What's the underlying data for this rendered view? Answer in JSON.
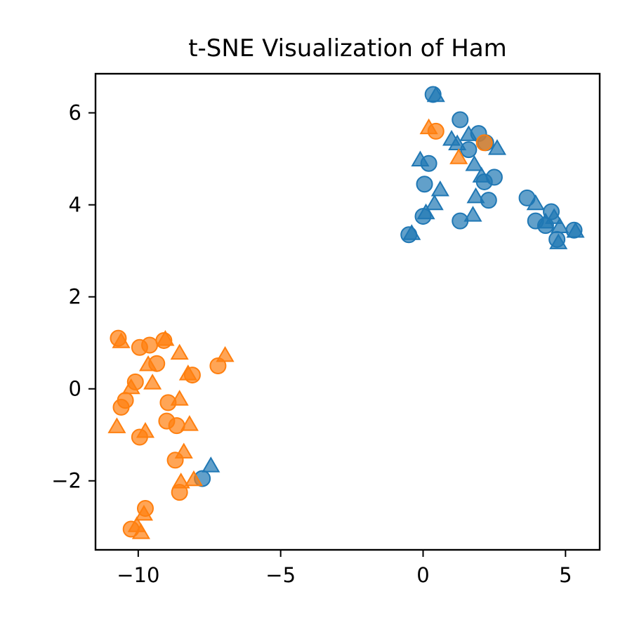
{
  "chart_data": {
    "type": "scatter",
    "title": "t-SNE Visualization of Ham",
    "xlabel": "",
    "ylabel": "",
    "xlim": [
      -11.5,
      6.2
    ],
    "ylim": [
      -3.5,
      6.85
    ],
    "xticks": [
      -10,
      -5,
      0,
      5
    ],
    "yticks": [
      -2,
      0,
      2,
      4,
      6
    ],
    "xtick_labels": [
      "−10",
      "−5",
      "0",
      "5"
    ],
    "ytick_labels": [
      "−2",
      "0",
      "2",
      "4",
      "6"
    ],
    "grid": false,
    "legend": false,
    "series": [
      {
        "color": "#1f77b4",
        "marker": "circle",
        "points": [
          [
            0.35,
            6.4
          ],
          [
            1.3,
            5.85
          ],
          [
            1.95,
            5.55
          ],
          [
            2.2,
            5.35
          ],
          [
            1.6,
            5.2
          ],
          [
            0.2,
            4.9
          ],
          [
            2.5,
            4.6
          ],
          [
            0.05,
            4.45
          ],
          [
            2.15,
            4.5
          ],
          [
            2.3,
            4.1
          ],
          [
            0.0,
            3.75
          ],
          [
            -0.5,
            3.35
          ],
          [
            1.3,
            3.65
          ],
          [
            3.65,
            4.15
          ],
          [
            4.5,
            3.85
          ],
          [
            3.95,
            3.65
          ],
          [
            4.3,
            3.55
          ],
          [
            4.7,
            3.25
          ],
          [
            5.3,
            3.45
          ],
          [
            -7.75,
            -1.95
          ]
        ]
      },
      {
        "color": "#1f77b4",
        "marker": "triangle",
        "points": [
          [
            0.45,
            6.35
          ],
          [
            1.0,
            5.4
          ],
          [
            1.6,
            5.5
          ],
          [
            1.2,
            5.3
          ],
          [
            2.6,
            5.2
          ],
          [
            1.8,
            4.85
          ],
          [
            -0.1,
            4.95
          ],
          [
            0.6,
            4.3
          ],
          [
            2.05,
            4.6
          ],
          [
            1.85,
            4.15
          ],
          [
            0.4,
            4.0
          ],
          [
            0.1,
            3.8
          ],
          [
            -0.4,
            3.35
          ],
          [
            1.75,
            3.75
          ],
          [
            3.95,
            4.0
          ],
          [
            4.3,
            3.6
          ],
          [
            4.6,
            3.7
          ],
          [
            4.8,
            3.5
          ],
          [
            4.75,
            3.15
          ],
          [
            5.35,
            3.4
          ],
          [
            -7.45,
            -1.7
          ]
        ]
      },
      {
        "color": "#ff7f0e",
        "marker": "circle",
        "points": [
          [
            0.45,
            5.6
          ],
          [
            2.15,
            5.35
          ],
          [
            -10.7,
            1.1
          ],
          [
            -9.95,
            0.9
          ],
          [
            -9.6,
            0.95
          ],
          [
            -9.1,
            1.05
          ],
          [
            -9.35,
            0.55
          ],
          [
            -7.2,
            0.5
          ],
          [
            -8.1,
            0.3
          ],
          [
            -10.1,
            0.15
          ],
          [
            -10.45,
            -0.25
          ],
          [
            -10.6,
            -0.4
          ],
          [
            -8.95,
            -0.3
          ],
          [
            -9.0,
            -0.7
          ],
          [
            -8.65,
            -0.8
          ],
          [
            -9.95,
            -1.05
          ],
          [
            -8.7,
            -1.55
          ],
          [
            -8.55,
            -2.25
          ],
          [
            -9.75,
            -2.6
          ],
          [
            -10.25,
            -3.05
          ]
        ]
      },
      {
        "color": "#ff7f0e",
        "marker": "triangle",
        "points": [
          [
            0.2,
            5.65
          ],
          [
            1.25,
            5.0
          ],
          [
            -10.6,
            1.0
          ],
          [
            -9.05,
            1.05
          ],
          [
            -8.55,
            0.75
          ],
          [
            -9.65,
            0.5
          ],
          [
            -6.95,
            0.7
          ],
          [
            -8.25,
            0.3
          ],
          [
            -9.5,
            0.1
          ],
          [
            -10.25,
            0.0
          ],
          [
            -8.55,
            -0.25
          ],
          [
            -10.75,
            -0.85
          ],
          [
            -9.75,
            -0.95
          ],
          [
            -8.2,
            -0.8
          ],
          [
            -8.4,
            -1.4
          ],
          [
            -8.5,
            -2.05
          ],
          [
            -8.05,
            -2.0
          ],
          [
            -9.8,
            -2.75
          ],
          [
            -10.05,
            -3.0
          ],
          [
            -9.9,
            -3.15
          ]
        ]
      }
    ]
  }
}
